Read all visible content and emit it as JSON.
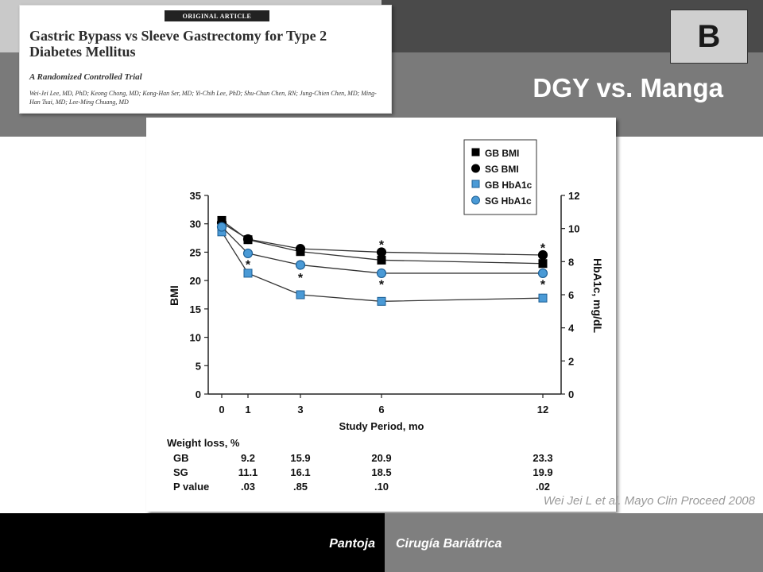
{
  "slide": {
    "title": "DGY vs. Manga",
    "badge": "B",
    "citation": "Wei Jei L et al. Mayo Clin Proceed 2008",
    "footer_author": "Pantoja",
    "footer_topic": "Cirugía Bariátrica"
  },
  "article": {
    "kicker": "ORIGINAL ARTICLE",
    "title": "Gastric Bypass vs Sleeve Gastrectomy for Type 2 Diabetes Mellitus",
    "subtitle": "A Randomized Controlled Trial",
    "authors": "Wei-Jei Lee, MD, PhD; Keong Chong, MD; Kong-Han Ser, MD; Yi-Chih Lee, PhD; Shu-Chun Chen, RN; Jung-Chien Chen, MD; Ming-Han Tsai, MD; Lee-Ming Chuang, MD"
  },
  "chart_data": {
    "type": "line",
    "xlabel": "Study Period, mo",
    "ylabel": "BMI",
    "ylabel_right": "HbA1c, mg/dL",
    "x": [
      0,
      1,
      3,
      6,
      12
    ],
    "xticks": [
      "0",
      "1",
      "3",
      "6",
      "12"
    ],
    "ylim": [
      0,
      35
    ],
    "yticks": [
      "0",
      "5",
      "10",
      "15",
      "20",
      "25",
      "30",
      "35"
    ],
    "ylim_right": [
      0,
      12
    ],
    "yticks_right": [
      "0",
      "2",
      "4",
      "6",
      "8",
      "10",
      "12"
    ],
    "legend_position": "top-right",
    "series": [
      {
        "name": "GB BMI",
        "axis": "left",
        "marker": "square",
        "color": "#000000",
        "values": [
          30.6,
          27.2,
          25.1,
          23.6,
          23.0
        ]
      },
      {
        "name": "SG BMI",
        "axis": "left",
        "marker": "circle",
        "color": "#000000",
        "values": [
          30.2,
          27.3,
          25.6,
          25.0,
          24.5
        ]
      },
      {
        "name": "GB HbA1c",
        "axis": "right",
        "marker": "square",
        "color": "#4a9ad6",
        "values": [
          9.8,
          7.3,
          6.0,
          5.6,
          5.8
        ]
      },
      {
        "name": "SG HbA1c",
        "axis": "right",
        "marker": "circle",
        "color": "#4a9ad6",
        "values": [
          10.1,
          8.5,
          7.8,
          7.3,
          7.3
        ]
      }
    ],
    "significance_marks": [
      {
        "x": 1,
        "axis": "right",
        "value": 8.0
      },
      {
        "x": 3,
        "axis": "right",
        "value": 7.2
      },
      {
        "x": 6,
        "axis": "right",
        "value": 6.8
      },
      {
        "x": 6,
        "axis": "right",
        "value": 9.2
      },
      {
        "x": 12,
        "axis": "right",
        "value": 6.8
      },
      {
        "x": 12,
        "axis": "right",
        "value": 9.0
      }
    ],
    "significance_symbol": "*",
    "table": {
      "title": "Weight loss, %",
      "rows": [
        {
          "label": "GB",
          "values": [
            "9.2",
            "15.9",
            "20.9",
            "23.3"
          ]
        },
        {
          "label": "SG",
          "values": [
            "11.1",
            "16.1",
            "18.5",
            "19.9"
          ]
        },
        {
          "label": "P value",
          "values": [
            ".03",
            ".85",
            ".10",
            ".02"
          ]
        }
      ],
      "columns_x": [
        1,
        3,
        6,
        12
      ]
    }
  }
}
